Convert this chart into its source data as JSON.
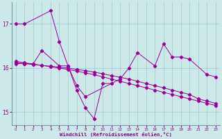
{
  "background_color": "#cce8e8",
  "line_color": "#990099",
  "grid_color": "#99cccc",
  "xlabel": "Windchill (Refroidissement éolien,°C)",
  "xlim": [
    -0.5,
    23.5
  ],
  "ylim": [
    14.7,
    17.5
  ],
  "yticks": [
    15,
    16,
    17
  ],
  "xticks": [
    0,
    1,
    2,
    3,
    4,
    5,
    6,
    7,
    8,
    9,
    10,
    11,
    12,
    13,
    14,
    15,
    16,
    17,
    18,
    19,
    20,
    21,
    22,
    23
  ],
  "series": [
    {
      "x": [
        0,
        1,
        4,
        5,
        6,
        7,
        8,
        9,
        10,
        11
      ],
      "y": [
        17.0,
        17.0,
        17.3,
        16.6,
        16.05,
        15.5,
        15.1,
        14.85,
        15.65,
        15.65
      ]
    },
    {
      "x": [
        0,
        1,
        2,
        3,
        5,
        6,
        7,
        8,
        12,
        13,
        14,
        16,
        17,
        18,
        19,
        20,
        22,
        23
      ],
      "y": [
        16.1,
        16.1,
        16.1,
        16.4,
        16.05,
        16.05,
        15.6,
        15.35,
        15.75,
        16.0,
        16.35,
        16.05,
        16.55,
        16.25,
        16.25,
        16.2,
        15.85,
        15.8
      ]
    },
    {
      "x": [
        0,
        1,
        2,
        3,
        4,
        5,
        6,
        7,
        8,
        9,
        10,
        11,
        12,
        13,
        14,
        15,
        16,
        17,
        18,
        19,
        20,
        21,
        22,
        23
      ],
      "y": [
        16.15,
        16.12,
        16.09,
        16.06,
        16.03,
        16.0,
        15.97,
        15.93,
        15.89,
        15.85,
        15.8,
        15.75,
        15.7,
        15.65,
        15.6,
        15.55,
        15.5,
        15.45,
        15.4,
        15.35,
        15.3,
        15.25,
        15.2,
        15.15
      ]
    },
    {
      "x": [
        0,
        1,
        2,
        3,
        4,
        5,
        6,
        7,
        8,
        9,
        10,
        11,
        12,
        13,
        14,
        15,
        16,
        17,
        18,
        19,
        20,
        21,
        22,
        23
      ],
      "y": [
        16.12,
        16.1,
        16.08,
        16.06,
        16.04,
        16.02,
        16.0,
        15.97,
        15.94,
        15.91,
        15.87,
        15.83,
        15.79,
        15.75,
        15.7,
        15.65,
        15.6,
        15.55,
        15.5,
        15.45,
        15.4,
        15.3,
        15.25,
        15.2
      ]
    }
  ]
}
